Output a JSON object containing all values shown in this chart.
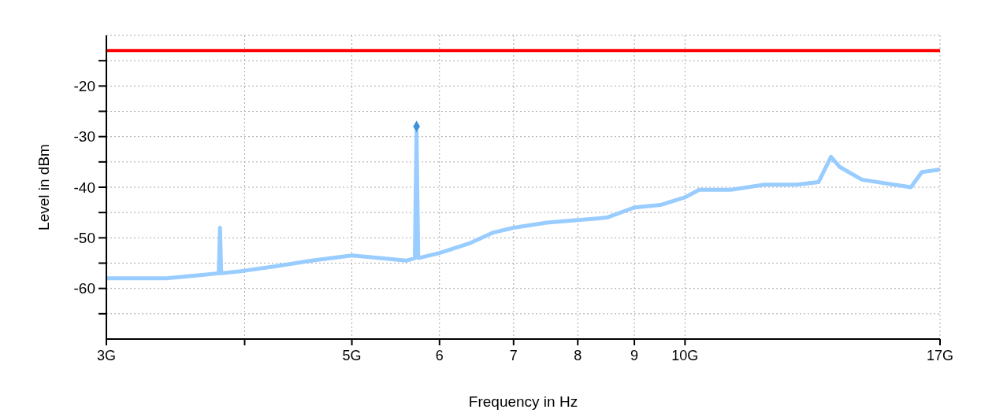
{
  "chart_data": {
    "type": "line",
    "xlabel": "Frequency in Hz",
    "ylabel": "Level in dBm",
    "log": "x",
    "grid": true,
    "xlim": [
      3,
      17
    ],
    "xticks": [
      {
        "value": 3,
        "label": "3G"
      },
      {
        "value": 4,
        "label": null
      },
      {
        "value": 5,
        "label": "5G"
      },
      6,
      7,
      8,
      9,
      {
        "value": 10,
        "label": "10G"
      },
      {
        "value": 17,
        "label": "17G"
      }
    ],
    "ylim": [
      -70,
      -10
    ],
    "yticks": [
      {
        "value": -65,
        "label": null
      },
      -60,
      {
        "value": -55,
        "label": null
      },
      -50,
      {
        "value": -45,
        "label": null
      },
      -40,
      {
        "value": -35,
        "label": null
      },
      -30,
      {
        "value": -25,
        "label": null
      },
      -20,
      {
        "value": -15,
        "label": null
      }
    ],
    "ref_lines": [
      {
        "axis": "y",
        "value": -13,
        "color": "#ff0000"
      }
    ],
    "series": [
      {
        "color": "#99ccff",
        "x": [
          3.0,
          3.2,
          3.4,
          3.6,
          3.79,
          3.8,
          3.81,
          4.0,
          4.3,
          4.6,
          5.0,
          5.3,
          5.6,
          5.7,
          5.72,
          5.74,
          6.0,
          6.4,
          6.7,
          7.0,
          7.5,
          8.0,
          8.5,
          9.0,
          9.5,
          10.0,
          10.3,
          11.0,
          11.8,
          12.6,
          13.2,
          13.55,
          13.8,
          14.45,
          15.45,
          16.0,
          16.37,
          17.0
        ],
        "values": [
          -58,
          -58,
          -58,
          -57.5,
          -57,
          -48,
          -57,
          -56.5,
          -55.5,
          -54.5,
          -53.5,
          -54,
          -54.5,
          -54,
          -29,
          -54,
          -53,
          -51,
          -49,
          -48,
          -47,
          -46.5,
          -46,
          -44,
          -43.5,
          -42,
          -40.5,
          -40.5,
          -39.5,
          -39.5,
          -39,
          -34,
          -36,
          -38.5,
          -39.5,
          -40,
          -37,
          -36.5
        ]
      },
      {
        "type": "scatter",
        "marker": "diamond",
        "color": "#3d94dc",
        "x": [
          5.72
        ],
        "values": [
          -28
        ]
      }
    ]
  }
}
